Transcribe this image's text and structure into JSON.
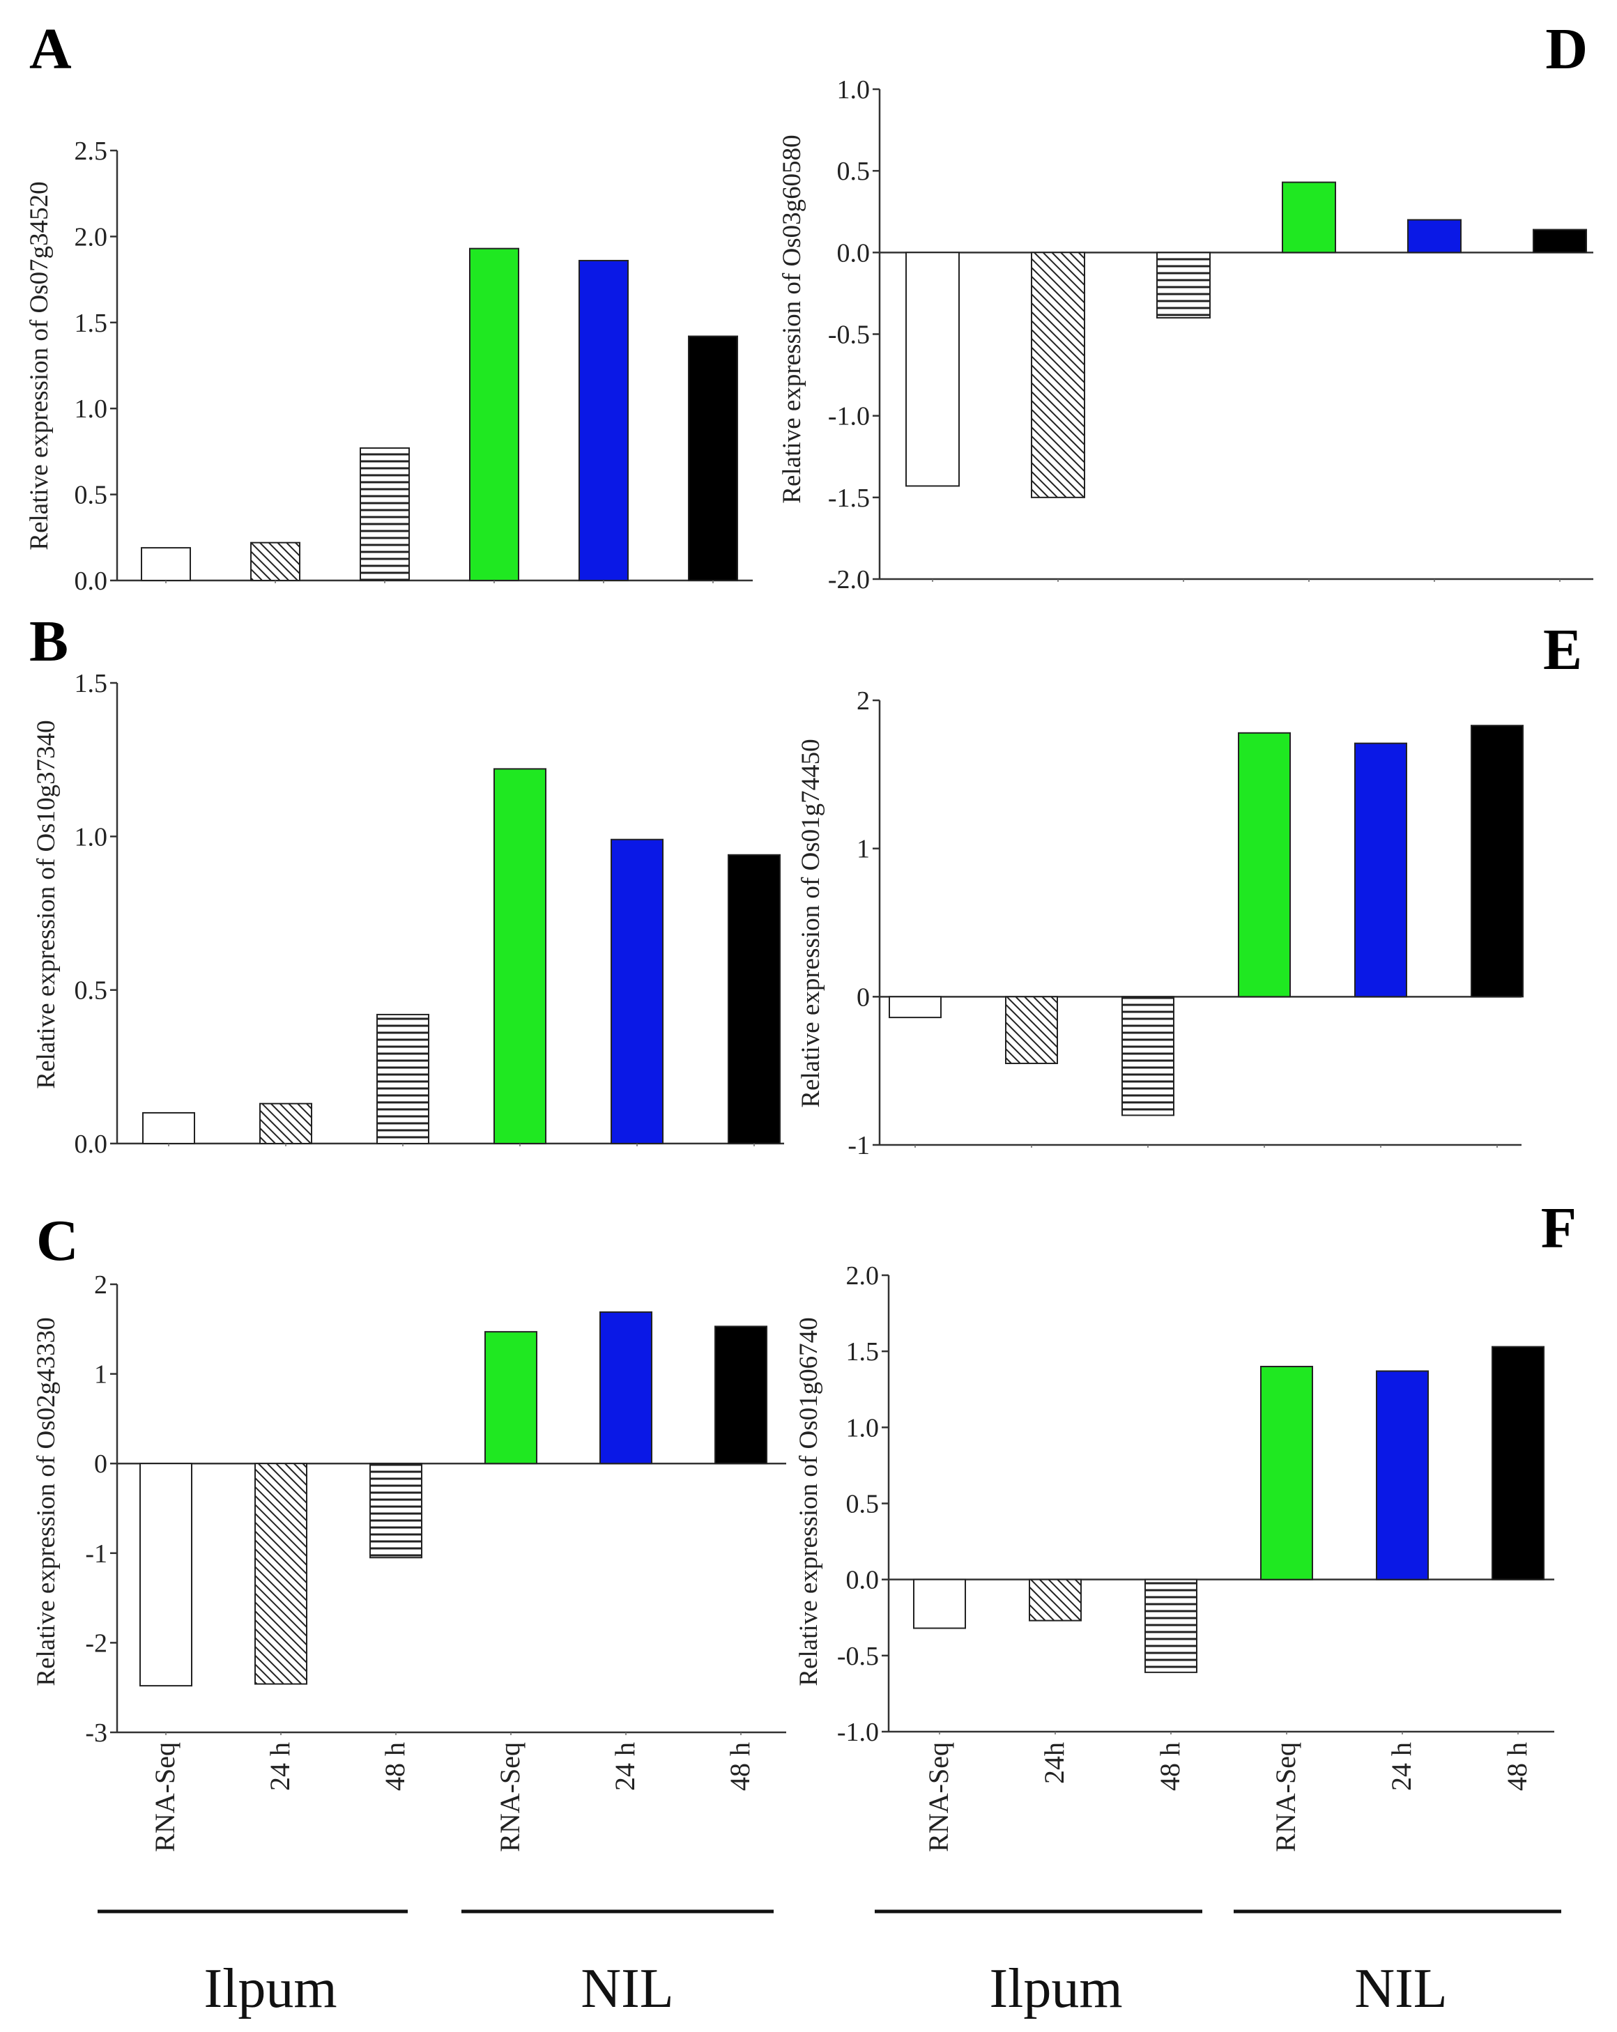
{
  "colors": {
    "rna_seq_ilpum": "#ffffff",
    "green": "#1fe821",
    "blue": "#0a18e6",
    "black": "#000000",
    "axis": "#333333"
  },
  "categories": [
    "RNA-Seq",
    "24 h",
    "48 h",
    "RNA-Seq",
    "24 h",
    "48 h"
  ],
  "categories_right": [
    "RNA-Seq",
    "24h",
    "48 h",
    "RNA-Seq",
    "24 h",
    "48 h"
  ],
  "bar_styles": [
    "open",
    "diagonal",
    "horizontal",
    "green",
    "blue",
    "black"
  ],
  "groups": {
    "left": [
      "Ilpum",
      "NIL"
    ],
    "right": [
      "Ilpum",
      "NIL"
    ]
  },
  "chart_data": [
    {
      "type": "bar",
      "panel": "A",
      "ylabel": "Relative expression of Os07g34520",
      "ylim": [
        0,
        2.5
      ],
      "ticks": [
        "0.0",
        "0.5",
        "1.0",
        "1.5",
        "2.0",
        "2.5"
      ],
      "tick_values": [
        0,
        0.5,
        1.0,
        1.5,
        2.0,
        2.5
      ],
      "categories": [
        "RNA-Seq",
        "24 h",
        "48 h",
        "RNA-Seq",
        "24 h",
        "48 h"
      ],
      "values": [
        0.19,
        0.22,
        0.77,
        1.93,
        1.86,
        1.42
      ]
    },
    {
      "type": "bar",
      "panel": "B",
      "ylabel": "Relative expression of Os10g37340",
      "ylim": [
        0,
        1.5
      ],
      "ticks": [
        "0.0",
        "0.5",
        "1.0",
        "1.5"
      ],
      "tick_values": [
        0,
        0.5,
        1.0,
        1.5
      ],
      "categories": [
        "RNA-Seq",
        "24 h",
        "48 h",
        "RNA-Seq",
        "24 h",
        "48 h"
      ],
      "values": [
        0.1,
        0.13,
        0.42,
        1.22,
        0.99,
        0.94
      ]
    },
    {
      "type": "bar",
      "panel": "C",
      "ylabel": "Relative expression of Os02g43330",
      "ylim": [
        -3,
        2
      ],
      "ticks": [
        "-3",
        "-2",
        "-1",
        "0",
        "1",
        "2"
      ],
      "tick_values": [
        -3,
        -2,
        -1,
        0,
        1,
        2
      ],
      "categories": [
        "RNA-Seq",
        "24 h",
        "48 h",
        "RNA-Seq",
        "24 h",
        "48 h"
      ],
      "values": [
        -2.48,
        -2.46,
        -1.05,
        1.47,
        1.69,
        1.53
      ]
    },
    {
      "type": "bar",
      "panel": "D",
      "ylabel": "Relative expression of Os03g60580",
      "ylim": [
        -2.0,
        1.0
      ],
      "ticks": [
        "-2.0",
        "-1.5",
        "-1.0",
        "-0.5",
        "0.0",
        "0.5",
        "1.0"
      ],
      "tick_values": [
        -2.0,
        -1.5,
        -1.0,
        -0.5,
        0,
        0.5,
        1.0
      ],
      "categories": [
        "RNA-Seq",
        "24 h",
        "48 h",
        "RNA-Seq",
        "24 h",
        "48 h"
      ],
      "values": [
        -1.43,
        -1.5,
        -0.4,
        0.43,
        0.2,
        0.14
      ]
    },
    {
      "type": "bar",
      "panel": "E",
      "ylabel": "Relative expression of Os01g74450",
      "ylim": [
        -1,
        2
      ],
      "ticks": [
        "-1",
        "0",
        "1",
        "2"
      ],
      "tick_values": [
        -1,
        0,
        1,
        2
      ],
      "categories": [
        "RNA-Seq",
        "24 h",
        "48 h",
        "RNA-Seq",
        "24 h",
        "48 h"
      ],
      "values": [
        -0.14,
        -0.45,
        -0.8,
        1.78,
        1.71,
        1.83
      ]
    },
    {
      "type": "bar",
      "panel": "F",
      "ylabel": "Relative expression of Os01g06740",
      "ylim": [
        -1.0,
        2.0
      ],
      "ticks": [
        "-1.0",
        "-0.5",
        "0.0",
        "0.5",
        "1.0",
        "1.5",
        "2.0"
      ],
      "tick_values": [
        -1.0,
        -0.5,
        0,
        0.5,
        1.0,
        1.5,
        2.0
      ],
      "categories": [
        "RNA-Seq",
        "24h",
        "48 h",
        "RNA-Seq",
        "24 h",
        "48 h"
      ],
      "values": [
        -0.32,
        -0.27,
        -0.61,
        1.4,
        1.37,
        1.53
      ]
    }
  ]
}
